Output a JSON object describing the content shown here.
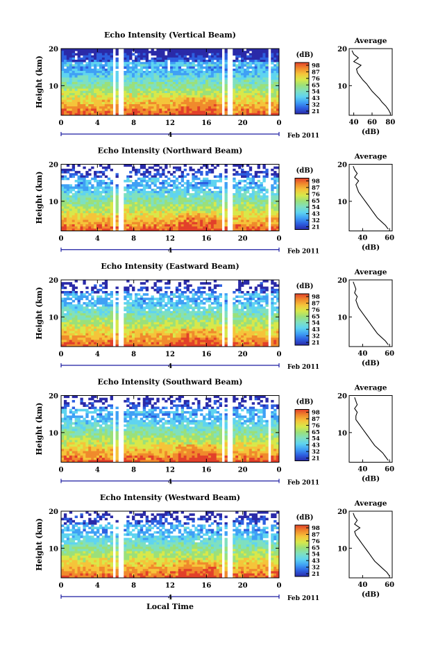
{
  "chart_data": [
    {
      "type": "heatmap",
      "title": "Echo Intensity (Vertical Beam)",
      "ylabel": "Height (km)",
      "xlabel": "",
      "x_ticks": [
        "0",
        "4",
        "8",
        "12",
        "16",
        "20",
        "0"
      ],
      "y_ticks": [
        "10",
        "20"
      ],
      "date_tick": "4",
      "date_label": "Feb 2011",
      "ylim": [
        2,
        20
      ],
      "xlim_hours": [
        0,
        24
      ],
      "colorbar_label": "(dB)",
      "colorbar_ticks": [
        "98",
        "87",
        "76",
        "65",
        "54",
        "43",
        "32",
        "21"
      ],
      "gaps_hours": [
        [
          5.6,
          5.95
        ],
        [
          6.35,
          6.8
        ],
        [
          17.6,
          18.0
        ],
        [
          18.45,
          18.75
        ],
        [
          22.7,
          23.2
        ]
      ],
      "avg_profile": {
        "title": "Average",
        "xlabel": "(dB)",
        "x_ticks": [
          "40",
          "60",
          "80"
        ],
        "y_ticks": [
          "10",
          "20"
        ],
        "xlim": [
          35,
          82
        ],
        "heights_km": [
          2.5,
          3.5,
          4.5,
          5.5,
          6.5,
          7.5,
          8.5,
          9.5,
          10.5,
          11.5,
          12.5,
          13.5,
          14.5,
          15.5,
          16.5,
          17.5,
          18.5,
          19.5
        ],
        "values_db": [
          80,
          78,
          75,
          71,
          68,
          64,
          60,
          57,
          54,
          50,
          47,
          44,
          43,
          48,
          40,
          45,
          40,
          38
        ]
      }
    },
    {
      "type": "heatmap",
      "title": "Echo Intensity (Northward Beam)",
      "ylabel": "Height (km)",
      "xlabel": "",
      "x_ticks": [
        "0",
        "4",
        "8",
        "12",
        "16",
        "20",
        "0"
      ],
      "y_ticks": [
        "10",
        "20"
      ],
      "date_tick": "4",
      "date_label": "Feb 2011",
      "ylim": [
        2,
        20
      ],
      "xlim_hours": [
        0,
        24
      ],
      "colorbar_label": "(dB)",
      "colorbar_ticks": [
        "98",
        "87",
        "76",
        "65",
        "54",
        "43",
        "32",
        "21"
      ],
      "gaps_hours": [
        [
          5.6,
          5.95
        ],
        [
          6.35,
          6.8
        ],
        [
          17.6,
          18.0
        ],
        [
          18.45,
          18.75
        ],
        [
          22.7,
          23.2
        ]
      ],
      "avg_profile": {
        "title": "Average",
        "xlabel": "(dB)",
        "x_ticks": [
          "40",
          "60"
        ],
        "y_ticks": [
          "10",
          "20"
        ],
        "xlim": [
          30,
          62
        ],
        "heights_km": [
          2.5,
          3.5,
          4.5,
          5.5,
          6.5,
          7.5,
          8.5,
          9.5,
          10.5,
          11.5,
          12.5,
          13.5,
          14.5,
          15.5,
          16.5,
          17.5,
          18.5,
          19.5
        ],
        "values_db": [
          59,
          57,
          54,
          51,
          49,
          47,
          45,
          43,
          41,
          39,
          37,
          36,
          35,
          37,
          34,
          36,
          34,
          33
        ]
      }
    },
    {
      "type": "heatmap",
      "title": "Echo Intensity (Eastward Beam)",
      "ylabel": "Height (km)",
      "xlabel": "",
      "x_ticks": [
        "0",
        "4",
        "8",
        "12",
        "16",
        "20",
        "0"
      ],
      "y_ticks": [
        "10",
        "20"
      ],
      "date_tick": "4",
      "date_label": "Feb 2011",
      "ylim": [
        2,
        20
      ],
      "xlim_hours": [
        0,
        24
      ],
      "colorbar_label": "(dB)",
      "colorbar_ticks": [
        "98",
        "87",
        "76",
        "65",
        "54",
        "43",
        "32",
        "21"
      ],
      "gaps_hours": [
        [
          5.6,
          5.95
        ],
        [
          6.35,
          6.8
        ],
        [
          17.6,
          18.0
        ],
        [
          18.45,
          18.75
        ],
        [
          22.7,
          23.2
        ]
      ],
      "avg_profile": {
        "title": "Average",
        "xlabel": "(dB)",
        "x_ticks": [
          "40",
          "60"
        ],
        "y_ticks": [
          "10",
          "20"
        ],
        "xlim": [
          30,
          62
        ],
        "heights_km": [
          2.5,
          3.5,
          4.5,
          5.5,
          6.5,
          7.5,
          8.5,
          9.5,
          10.5,
          11.5,
          12.5,
          13.5,
          14.5,
          15.5,
          16.5,
          17.5,
          18.5,
          19.5
        ],
        "values_db": [
          59,
          57,
          54,
          51,
          49,
          47,
          45,
          43,
          41,
          39,
          37,
          36,
          35,
          36,
          34,
          35,
          34,
          33
        ]
      }
    },
    {
      "type": "heatmap",
      "title": "Echo Intensity (Southward Beam)",
      "ylabel": "Height (km)",
      "xlabel": "",
      "x_ticks": [
        "0",
        "4",
        "8",
        "12",
        "16",
        "20",
        "0"
      ],
      "y_ticks": [
        "10",
        "20"
      ],
      "date_tick": "4",
      "date_label": "Feb 2011",
      "ylim": [
        2,
        20
      ],
      "xlim_hours": [
        0,
        24
      ],
      "colorbar_label": "(dB)",
      "colorbar_ticks": [
        "98",
        "87",
        "76",
        "65",
        "54",
        "43",
        "32",
        "21"
      ],
      "gaps_hours": [
        [
          5.6,
          5.95
        ],
        [
          6.35,
          6.8
        ],
        [
          17.6,
          18.0
        ],
        [
          18.45,
          18.75
        ],
        [
          22.7,
          23.2
        ]
      ],
      "avg_profile": {
        "title": "Average",
        "xlabel": "(dB)",
        "x_ticks": [
          "40",
          "60"
        ],
        "y_ticks": [
          "10",
          "20"
        ],
        "xlim": [
          30,
          62
        ],
        "heights_km": [
          2.5,
          3.5,
          4.5,
          5.5,
          6.5,
          7.5,
          8.5,
          9.5,
          10.5,
          11.5,
          12.5,
          13.5,
          14.5,
          15.5,
          16.5,
          17.5,
          18.5,
          19.5
        ],
        "values_db": [
          59,
          57,
          55,
          52,
          49,
          47,
          45,
          43,
          41,
          39,
          37,
          35,
          35,
          36,
          34,
          36,
          35,
          34
        ]
      }
    },
    {
      "type": "heatmap",
      "title": "Echo Intensity (Westward Beam)",
      "ylabel": "Height (km)",
      "xlabel": "Local Time",
      "x_ticks": [
        "0",
        "4",
        "8",
        "12",
        "16",
        "20",
        "0"
      ],
      "y_ticks": [
        "10",
        "20"
      ],
      "date_tick": "4",
      "date_label": "Feb 2011",
      "ylim": [
        2,
        20
      ],
      "xlim_hours": [
        0,
        24
      ],
      "colorbar_label": "(dB)",
      "colorbar_ticks": [
        "98",
        "87",
        "76",
        "65",
        "54",
        "43",
        "32",
        "21"
      ],
      "gaps_hours": [
        [
          5.6,
          5.95
        ],
        [
          6.35,
          6.8
        ],
        [
          17.6,
          18.0
        ],
        [
          18.45,
          18.75
        ],
        [
          22.7,
          23.2
        ]
      ],
      "avg_profile": {
        "title": "Average",
        "xlabel": "(dB)",
        "x_ticks": [
          "40",
          "60"
        ],
        "y_ticks": [
          "10",
          "20"
        ],
        "xlim": [
          30,
          62
        ],
        "heights_km": [
          2.5,
          3.5,
          4.5,
          5.5,
          6.5,
          7.5,
          8.5,
          9.5,
          10.5,
          11.5,
          12.5,
          13.5,
          14.5,
          15.5,
          16.5,
          17.5,
          18.5,
          19.5
        ],
        "values_db": [
          60,
          58,
          55,
          52,
          49,
          47,
          45,
          43,
          41,
          39,
          37,
          35,
          34,
          38,
          34,
          36,
          34,
          33
        ]
      }
    }
  ],
  "colormap": [
    "#2a2aa8",
    "#2d5fe0",
    "#3fa0f5",
    "#5fd4f0",
    "#7fe0c0",
    "#9be07a",
    "#d8e84a",
    "#f5c43a",
    "#f08a2c",
    "#e2402a"
  ],
  "colors": {
    "axis": "#000000",
    "background": "#ffffff",
    "date_axis": "#1a1aa0"
  }
}
